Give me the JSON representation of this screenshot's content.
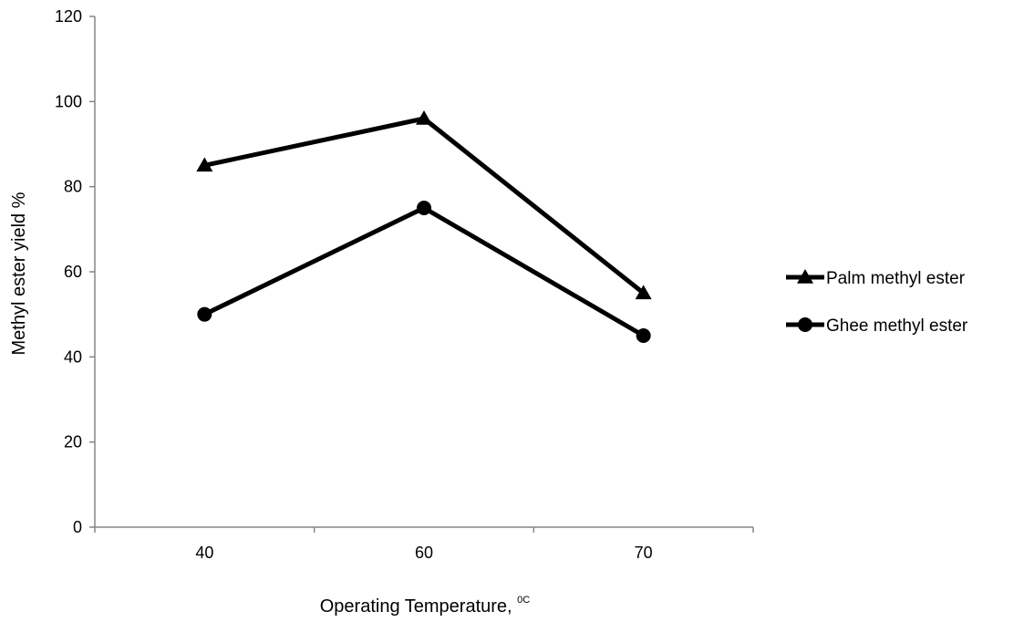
{
  "chart_data": {
    "type": "line",
    "title": "",
    "xlabel": "Operating Temperature, ",
    "xlabel_sup": "0C",
    "ylabel": "Methyl ester yield %",
    "categories": [
      "40",
      "60",
      "70"
    ],
    "ylim": [
      0,
      120
    ],
    "yticks": [
      0,
      20,
      40,
      60,
      80,
      100,
      120
    ],
    "grid": false,
    "legend_position": "right",
    "series": [
      {
        "name": "Palm methyl ester",
        "marker": "triangle",
        "color": "#000000",
        "values": [
          85,
          96,
          55
        ]
      },
      {
        "name": "Ghee methyl ester",
        "marker": "circle",
        "color": "#000000",
        "values": [
          50,
          75,
          45
        ]
      }
    ]
  }
}
